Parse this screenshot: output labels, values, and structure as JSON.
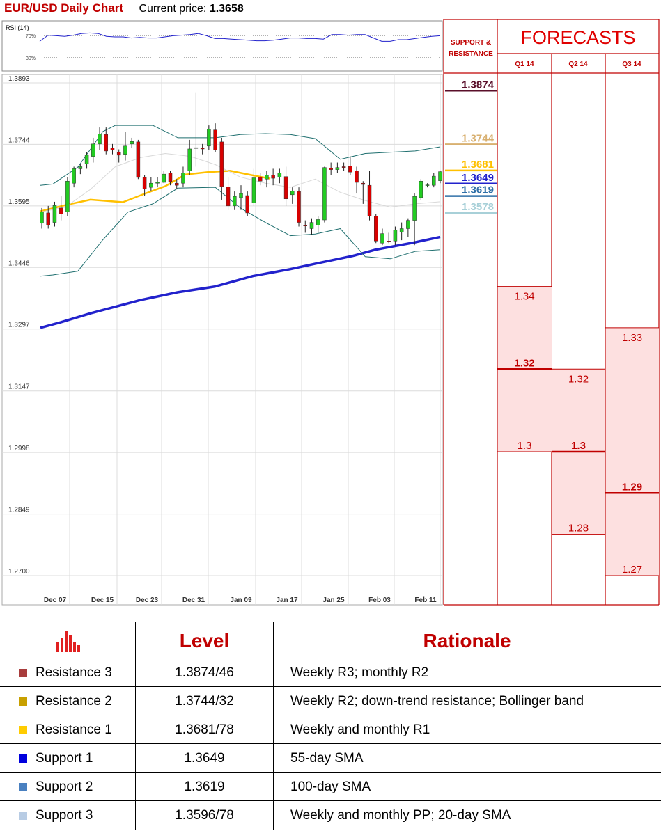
{
  "header": {
    "title": "EUR/USD Daily Chart",
    "current_price_label": "Current price:",
    "current_price_value": "1.3658"
  },
  "colors": {
    "accent_red": "#c00000",
    "bullish": "#22cc22",
    "bearish": "#d80000",
    "sma_20": "#ffc000",
    "sma_55": "#2222cc",
    "bollinger": "#1f6f6f",
    "rsi_line": "#2222cc",
    "forecast_fill": "#fde0e0"
  },
  "chart_data": [
    {
      "type": "line",
      "title": "RSI (14)",
      "y_ticks": [
        "70%",
        "30%"
      ],
      "ylim": [
        0,
        100
      ],
      "series": [
        {
          "name": "",
          "values": [
            52,
            63,
            62,
            61,
            63,
            66,
            67,
            66,
            61,
            60,
            60,
            58,
            59,
            58,
            58,
            60,
            62,
            63,
            64,
            66,
            62,
            57,
            57,
            56,
            55,
            54,
            53,
            53,
            54,
            56,
            58,
            58,
            57,
            57,
            56,
            64,
            64,
            63,
            64,
            64,
            58,
            52,
            52,
            55,
            55,
            57,
            59,
            61,
            62
          ]
        }
      ]
    },
    {
      "type": "candlestick",
      "y_ticks": [
        "1.3893",
        "1.3744",
        "1.3595",
        "1.3446",
        "1.3297",
        "1.3147",
        "1.2998",
        "1.2849",
        "1.2700"
      ],
      "ylim": [
        1.27,
        1.3893
      ],
      "x_ticks": [
        "Dec 07",
        "Dec 15",
        "Dec 23",
        "Dec 31",
        "Jan 09",
        "Jan 17",
        "Jan 25",
        "Feb 03",
        "Feb 11"
      ],
      "candles": [
        [
          1.3553,
          1.359,
          1.354,
          1.358
        ],
        [
          1.3578,
          1.3595,
          1.354,
          1.3548
        ],
        [
          1.3555,
          1.3605,
          1.3545,
          1.3596
        ],
        [
          1.359,
          1.362,
          1.356,
          1.3575
        ],
        [
          1.358,
          1.3665,
          1.357,
          1.3655
        ],
        [
          1.365,
          1.369,
          1.364,
          1.3685
        ],
        [
          1.3685,
          1.3697,
          1.3672,
          1.369
        ],
        [
          1.3697,
          1.3725,
          1.3685,
          1.3718
        ],
        [
          1.3715,
          1.376,
          1.37,
          1.3745
        ],
        [
          1.3745,
          1.3785,
          1.373,
          1.3769
        ],
        [
          1.3768,
          1.3785,
          1.372,
          1.3728
        ],
        [
          1.3735,
          1.3745,
          1.372,
          1.373
        ],
        [
          1.3725,
          1.3732,
          1.37,
          1.3718
        ],
        [
          1.372,
          1.3775,
          1.3705,
          1.374
        ],
        [
          1.3745,
          1.376,
          1.3735,
          1.3751
        ],
        [
          1.375,
          1.3755,
          1.366,
          1.3664
        ],
        [
          1.3664,
          1.367,
          1.362,
          1.3636
        ],
        [
          1.364,
          1.3665,
          1.363,
          1.365
        ],
        [
          1.365,
          1.3665,
          1.364,
          1.3652
        ],
        [
          1.3652,
          1.368,
          1.365,
          1.3672
        ],
        [
          1.3675,
          1.368,
          1.3645,
          1.3654
        ],
        [
          1.365,
          1.366,
          1.3635,
          1.3645
        ],
        [
          1.365,
          1.369,
          1.364,
          1.3675
        ],
        [
          1.368,
          1.3755,
          1.367,
          1.3733
        ],
        [
          1.3735,
          1.387,
          1.369,
          1.3736
        ],
        [
          1.3735,
          1.3745,
          1.372,
          1.3733
        ],
        [
          1.374,
          1.379,
          1.373,
          1.3781
        ],
        [
          1.3779,
          1.3795,
          1.3725,
          1.373
        ],
        [
          1.375,
          1.376,
          1.361,
          1.3642
        ],
        [
          1.3641,
          1.3665,
          1.3585,
          1.3595
        ],
        [
          1.3595,
          1.363,
          1.3585,
          1.3618
        ],
        [
          1.3615,
          1.3645,
          1.3585,
          1.3625
        ],
        [
          1.362,
          1.363,
          1.357,
          1.3578
        ],
        [
          1.3602,
          1.3685,
          1.3595,
          1.3663
        ],
        [
          1.3665,
          1.3675,
          1.3645,
          1.3655
        ],
        [
          1.366,
          1.368,
          1.364,
          1.367
        ],
        [
          1.367,
          1.3685,
          1.3645,
          1.3662
        ],
        [
          1.3665,
          1.3685,
          1.365,
          1.3675
        ],
        [
          1.3666,
          1.369,
          1.3595,
          1.3612
        ],
        [
          1.3622,
          1.364,
          1.36,
          1.3631
        ],
        [
          1.363,
          1.364,
          1.3545,
          1.3555
        ],
        [
          1.3548,
          1.356,
          1.353,
          1.3547
        ],
        [
          1.354,
          1.3565,
          1.3525,
          1.3555
        ],
        [
          1.3548,
          1.357,
          1.353,
          1.3562
        ],
        [
          1.3561,
          1.369,
          1.3555,
          1.3688
        ],
        [
          1.3687,
          1.37,
          1.367,
          1.3683
        ],
        [
          1.3683,
          1.37,
          1.3675,
          1.3688
        ],
        [
          1.369,
          1.37,
          1.368,
          1.3688
        ],
        [
          1.3692,
          1.3715,
          1.367,
          1.3677
        ],
        [
          1.368,
          1.369,
          1.3625,
          1.3652
        ],
        [
          1.365,
          1.3655,
          1.36,
          1.3647
        ],
        [
          1.3645,
          1.368,
          1.356,
          1.357
        ],
        [
          1.357,
          1.3575,
          1.3505,
          1.351
        ],
        [
          1.3505,
          1.354,
          1.35,
          1.3528
        ],
        [
          1.351,
          1.353,
          1.3505,
          1.3508
        ],
        [
          1.351,
          1.3545,
          1.35,
          1.3537
        ],
        [
          1.3532,
          1.3555,
          1.3512,
          1.354
        ],
        [
          1.354,
          1.3565,
          1.352,
          1.356
        ],
        [
          1.356,
          1.3625,
          1.35,
          1.3618
        ],
        [
          1.3615,
          1.366,
          1.361,
          1.3655
        ],
        [
          1.3645,
          1.365,
          1.364,
          1.3646
        ],
        [
          1.3645,
          1.3675,
          1.364,
          1.3667
        ],
        [
          1.3656,
          1.368,
          1.365,
          1.3678
        ]
      ],
      "overlays": [
        {
          "name": "",
          "color": "#ffc000",
          "values": [
            [
              0,
              1.3582
            ],
            [
              10,
              1.3597
            ],
            [
              20,
              1.361
            ],
            [
              33,
              1.3604
            ],
            [
              42,
              1.3625
            ],
            [
              50,
              1.3643
            ],
            [
              58,
              1.3671
            ],
            [
              67,
              1.3677
            ],
            [
              76,
              1.368
            ],
            [
              85,
              1.3669
            ],
            [
              92,
              1.3661
            ]
          ]
        },
        {
          "name": "",
          "color": "#2222cc",
          "values": [
            [
              0,
              1.33
            ],
            [
              8,
              1.3313
            ],
            [
              20,
              1.3335
            ],
            [
              40,
              1.3367
            ],
            [
              55,
              1.3386
            ],
            [
              70,
              1.34
            ],
            [
              85,
              1.3425
            ],
            [
              100,
              1.3442
            ],
            [
              110,
              1.3455
            ],
            [
              125,
              1.3474
            ],
            [
              134,
              1.3489
            ],
            [
              150,
              1.3507
            ],
            [
              160,
              1.352
            ]
          ]
        },
        {
          "name": "",
          "color": "#1f6f6f",
          "values": [
            [
              0,
              1.3645
            ],
            [
              5,
              1.3648
            ],
            [
              15,
              1.3689
            ],
            [
              25,
              1.3775
            ],
            [
              30,
              1.379
            ],
            [
              45,
              1.379
            ],
            [
              55,
              1.376
            ],
            [
              70,
              1.376
            ],
            [
              80,
              1.3768
            ],
            [
              90,
              1.377
            ],
            [
              100,
              1.3768
            ],
            [
              110,
              1.3758
            ],
            [
              120,
              1.3708
            ],
            [
              130,
              1.3722
            ],
            [
              150,
              1.3728
            ],
            [
              160,
              1.3738
            ]
          ]
        },
        {
          "name": "",
          "color": "#1f6f6f",
          "values": [
            [
              0,
              1.3425
            ],
            [
              5,
              1.3428
            ],
            [
              15,
              1.3437
            ],
            [
              25,
              1.3513
            ],
            [
              35,
              1.358
            ],
            [
              45,
              1.36
            ],
            [
              55,
              1.3638
            ],
            [
              70,
              1.364
            ],
            [
              80,
              1.359
            ],
            [
              90,
              1.3555
            ],
            [
              100,
              1.3523
            ],
            [
              110,
              1.3527
            ],
            [
              120,
              1.354
            ],
            [
              130,
              1.3472
            ],
            [
              140,
              1.3467
            ],
            [
              150,
              1.3485
            ],
            [
              160,
              1.3489
            ]
          ]
        },
        {
          "name": "",
          "color": "#d8d8d8",
          "values": [
            [
              0,
              1.358
            ],
            [
              10,
              1.3592
            ],
            [
              20,
              1.3635
            ],
            [
              30,
              1.369
            ],
            [
              40,
              1.3712
            ],
            [
              50,
              1.3722
            ],
            [
              60,
              1.3715
            ],
            [
              70,
              1.3695
            ],
            [
              80,
              1.3665
            ],
            [
              90,
              1.365
            ],
            [
              100,
              1.364
            ],
            [
              110,
              1.366
            ],
            [
              120,
              1.3628
            ],
            [
              130,
              1.3608
            ],
            [
              140,
              1.3592
            ],
            [
              150,
              1.36
            ],
            [
              160,
              1.3605
            ]
          ]
        }
      ]
    },
    {
      "type": "table",
      "title": "SUPPORT & RESISTANCE",
      "levels": [
        {
          "value": 1.3874,
          "label": "1.3874",
          "color": "#5a0f2a"
        },
        {
          "value": 1.3744,
          "label": "1.3744",
          "color": "#d8b070"
        },
        {
          "value": 1.3681,
          "label": "1.3681",
          "color": "#ffc000"
        },
        {
          "value": 1.3649,
          "label": "1.3649",
          "color": "#2222cc"
        },
        {
          "value": 1.3619,
          "label": "1.3619",
          "color": "#3070a8"
        },
        {
          "value": 1.3578,
          "label": "1.3578",
          "color": "#a8d0d8"
        }
      ]
    },
    {
      "type": "bar",
      "title": "FORECASTS",
      "categories": [
        "Q1 14",
        "Q2 14",
        "Q3 14"
      ],
      "ylim": [
        1.27,
        1.3893
      ],
      "ranges": [
        {
          "category": "Q1 14",
          "high": 1.34,
          "median": 1.32,
          "low": 1.3,
          "high_label": "1.34",
          "median_label": "1.32",
          "low_label": "1.3"
        },
        {
          "category": "Q2 14",
          "high": 1.32,
          "median": 1.3,
          "low": 1.28,
          "high_label": "1.32",
          "median_label": "1.3",
          "low_label": "1.28"
        },
        {
          "category": "Q3 14",
          "high": 1.33,
          "median": 1.29,
          "low": 1.27,
          "high_label": "1.33",
          "median_label": "1.29",
          "low_label": "1.27"
        }
      ]
    }
  ],
  "levels_table": {
    "icon": "bar-chart-icon",
    "headers": {
      "level": "Level",
      "rationale": "Rationale"
    },
    "rows": [
      {
        "name": "Resistance 3",
        "level": "1.3874/46",
        "rationale": "Weekly R3; monthly R2",
        "color": "#a83c3c"
      },
      {
        "name": "Resistance 2",
        "level": "1.3744/32",
        "rationale": "Weekly R2; down-trend resistance; Bollinger band",
        "color": "#c8a000"
      },
      {
        "name": "Resistance 1",
        "level": "1.3681/78",
        "rationale": "Weekly and monthly R1",
        "color": "#ffcc00"
      },
      {
        "name": "Support 1",
        "level": "1.3649",
        "rationale": "55-day SMA",
        "color": "#0000dd"
      },
      {
        "name": "Support 2",
        "level": "1.3619",
        "rationale": "100-day SMA",
        "color": "#4a80c0"
      },
      {
        "name": "Support 3",
        "level": "1.3596/78",
        "rationale": "Weekly and monthly PP; 20-day SMA",
        "color": "#b8cce4"
      }
    ]
  }
}
